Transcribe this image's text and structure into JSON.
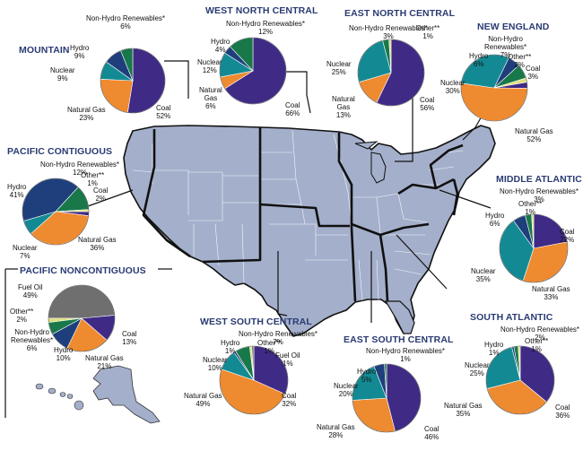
{
  "colors": {
    "coal": "#3f2a86",
    "natural_gas": "#ee8a2f",
    "nuclear": "#138a93",
    "hydro": "#1e3f7c",
    "non_hydro_renewables": "#18784a",
    "other": "#dcdf7a",
    "fuel_oil": "#6f6f6f",
    "map_fill": "#a4afcb",
    "map_border": "#111111",
    "title": "#2a3b73"
  },
  "chart_data": [
    {
      "type": "pie",
      "title": "MOUNTAIN",
      "slices": [
        {
          "name": "Coal",
          "value": 52,
          "label": "Coal",
          "pct": "52%"
        },
        {
          "name": "Natural Gas",
          "value": 23,
          "label": "Natural Gas",
          "pct": "23%"
        },
        {
          "name": "Nuclear",
          "value": 9,
          "label": "Nuclear",
          "pct": "9%"
        },
        {
          "name": "Hydro",
          "value": 9,
          "label": "Hydro",
          "pct": "9%"
        },
        {
          "name": "Non-Hydro Renewables",
          "value": 6,
          "label": "Non-Hydro Renewables*",
          "pct": "6%"
        }
      ]
    },
    {
      "type": "pie",
      "title": "WEST NORTH CENTRAL",
      "slices": [
        {
          "name": "Coal",
          "value": 66,
          "label": "Coal",
          "pct": "66%"
        },
        {
          "name": "Natural Gas",
          "value": 6,
          "label": "Natural Gas",
          "pct": "6%"
        },
        {
          "name": "Nuclear",
          "value": 12,
          "label": "Nuclear",
          "pct": "12%"
        },
        {
          "name": "Hydro",
          "value": 4,
          "label": "Hydro",
          "pct": "4%"
        },
        {
          "name": "Non-Hydro Renewables",
          "value": 12,
          "label": "Non-Hydro Renewables*",
          "pct": "12%"
        }
      ]
    },
    {
      "type": "pie",
      "title": "EAST NORTH CENTRAL",
      "slices": [
        {
          "name": "Coal",
          "value": 56,
          "label": "Coal",
          "pct": "56%"
        },
        {
          "name": "Natural Gas",
          "value": 13,
          "label": "Natural Gas",
          "pct": "13%"
        },
        {
          "name": "Nuclear",
          "value": 25,
          "label": "Nuclear",
          "pct": "25%"
        },
        {
          "name": "Non-Hydro Renewables",
          "value": 3,
          "label": "Non-Hydro Renewables*",
          "pct": "3%"
        },
        {
          "name": "Other",
          "value": 1,
          "label": "Other**",
          "pct": "1%"
        }
      ]
    },
    {
      "type": "pie",
      "title": "NEW ENGLAND",
      "slices": [
        {
          "name": "Coal",
          "value": 3,
          "label": "Coal",
          "pct": "3%"
        },
        {
          "name": "Natural Gas",
          "value": 52,
          "label": "Natural Gas",
          "pct": "52%"
        },
        {
          "name": "Nuclear",
          "value": 30,
          "label": "Nuclear",
          "pct": "30%"
        },
        {
          "name": "Hydro",
          "value": 6,
          "label": "Hydro",
          "pct": "6%"
        },
        {
          "name": "Non-Hydro Renewables",
          "value": 7,
          "label": "Non-Hydro Renewables*",
          "pct": "7%"
        },
        {
          "name": "Other",
          "value": 2,
          "label": "Other**",
          "pct": "2%"
        }
      ]
    },
    {
      "type": "pie",
      "title": "PACIFIC CONTIGUOUS",
      "slices": [
        {
          "name": "Coal",
          "value": 2,
          "label": "Coal",
          "pct": "2%"
        },
        {
          "name": "Natural Gas",
          "value": 36,
          "label": "Natural Gas",
          "pct": "36%"
        },
        {
          "name": "Nuclear",
          "value": 7,
          "label": "Nuclear",
          "pct": "7%"
        },
        {
          "name": "Hydro",
          "value": 41,
          "label": "Hydro",
          "pct": "41%"
        },
        {
          "name": "Non-Hydro Renewables",
          "value": 12,
          "label": "Non-Hydro Renewables*",
          "pct": "12%"
        },
        {
          "name": "Other",
          "value": 1,
          "label": "Other**",
          "pct": "1%"
        }
      ]
    },
    {
      "type": "pie",
      "title": "MIDDLE ATLANTIC",
      "slices": [
        {
          "name": "Coal",
          "value": 22,
          "label": "Coal",
          "pct": "22%"
        },
        {
          "name": "Natural Gas",
          "value": 33,
          "label": "Natural Gas",
          "pct": "33%"
        },
        {
          "name": "Nuclear",
          "value": 35,
          "label": "Nuclear",
          "pct": "35%"
        },
        {
          "name": "Hydro",
          "value": 6,
          "label": "Hydro",
          "pct": "6%"
        },
        {
          "name": "Non-Hydro Renewables",
          "value": 3,
          "label": "Non-Hydro Renewables*",
          "pct": "3%"
        },
        {
          "name": "Other",
          "value": 1,
          "label": "Other**",
          "pct": "1%"
        }
      ]
    },
    {
      "type": "pie",
      "title": "PACIFIC NONCONTIGUOUS",
      "slices": [
        {
          "name": "Fuel Oil",
          "value": 49,
          "label": "Fuel Oil",
          "pct": "49%"
        },
        {
          "name": "Coal",
          "value": 13,
          "label": "Coal",
          "pct": "13%"
        },
        {
          "name": "Natural Gas",
          "value": 21,
          "label": "Natural Gas",
          "pct": "21%"
        },
        {
          "name": "Hydro",
          "value": 10,
          "label": "Hydro",
          "pct": "10%"
        },
        {
          "name": "Non-Hydro Renewables",
          "value": 6,
          "label": "Non-Hydro Renewables*",
          "pct": "6%"
        },
        {
          "name": "Other",
          "value": 2,
          "label": "Other**",
          "pct": "2%"
        }
      ]
    },
    {
      "type": "pie",
      "title": "WEST SOUTH CENTRAL",
      "slices": [
        {
          "name": "Coal",
          "value": 32,
          "label": "Coal",
          "pct": "32%"
        },
        {
          "name": "Natural Gas",
          "value": 49,
          "label": "Natural Gas",
          "pct": "49%"
        },
        {
          "name": "Nuclear",
          "value": 10,
          "label": "Nuclear",
          "pct": "10%"
        },
        {
          "name": "Hydro",
          "value": 1,
          "label": "Hydro",
          "pct": "1%"
        },
        {
          "name": "Non-Hydro Renewables",
          "value": 7,
          "label": "Non-Hydro Renewables*",
          "pct": "7%"
        },
        {
          "name": "Other",
          "value": 1,
          "label": "Other**",
          "pct": "1%"
        },
        {
          "name": "Fuel Oil",
          "value": 1,
          "label": "Fuel Oil",
          "pct": "1%"
        }
      ]
    },
    {
      "type": "pie",
      "title": "EAST SOUTH CENTRAL",
      "slices": [
        {
          "name": "Coal",
          "value": 46,
          "label": "Coal",
          "pct": "46%"
        },
        {
          "name": "Natural Gas",
          "value": 28,
          "label": "Natural Gas",
          "pct": "28%"
        },
        {
          "name": "Nuclear",
          "value": 20,
          "label": "Nuclear",
          "pct": "20%"
        },
        {
          "name": "Hydro",
          "value": 5,
          "label": "Hydro",
          "pct": "5%"
        },
        {
          "name": "Non-Hydro Renewables",
          "value": 1,
          "label": "Non-Hydro Renewables*",
          "pct": "1%"
        }
      ]
    },
    {
      "type": "pie",
      "title": "SOUTH ATLANTIC",
      "slices": [
        {
          "name": "Coal",
          "value": 36,
          "label": "Coal",
          "pct": "36%"
        },
        {
          "name": "Natural Gas",
          "value": 35,
          "label": "Natural Gas",
          "pct": "35%"
        },
        {
          "name": "Nuclear",
          "value": 25,
          "label": "Nuclear",
          "pct": "25%"
        },
        {
          "name": "Hydro",
          "value": 1,
          "label": "Hydro",
          "pct": "1%"
        },
        {
          "name": "Non-Hydro Renewables",
          "value": 2,
          "label": "Non-Hydro Renewables*",
          "pct": "2%"
        },
        {
          "name": "Other",
          "value": 1,
          "label": "Other**",
          "pct": "1%"
        }
      ]
    }
  ]
}
